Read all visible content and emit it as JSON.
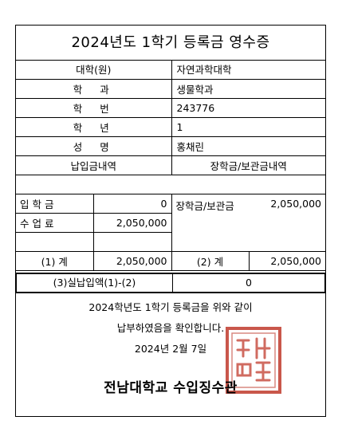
{
  "title": "2024년도 1학기 등록금 영수증",
  "info": [
    {
      "label": "대학(원)",
      "value": "자연과학대학"
    },
    {
      "label": "학과",
      "value": "생물학과"
    },
    {
      "label": "학번",
      "value": "243776"
    },
    {
      "label": "학년",
      "value": "1"
    },
    {
      "label": "성명",
      "value": "홍채린"
    }
  ],
  "sections": {
    "left": "납입금내역",
    "right": "장학금/보관금내역"
  },
  "fees": {
    "admission_label": "입 학 금",
    "admission_value": "0",
    "tuition_label": "수 업 료",
    "tuition_value": "2,050,000",
    "scholarship_label": "장학금/보관금",
    "scholarship_value": "2,050,000",
    "sum1_label": "(1) 계",
    "sum1_value": "2,050,000",
    "sum2_label": "(2) 계",
    "sum2_value": "2,050,000"
  },
  "net": {
    "label": "(3)실납입액(1)-(2)",
    "value": "0"
  },
  "statement": {
    "line1": "2024학년도 1학기 등록금을 위와 같이",
    "line2": "납부하였음을 확인합니다.",
    "date": "2024년 2월 7일"
  },
  "signer": "전남대학교 수입징수관",
  "seal_text": "印",
  "colors": {
    "seal": "#c0392b"
  }
}
